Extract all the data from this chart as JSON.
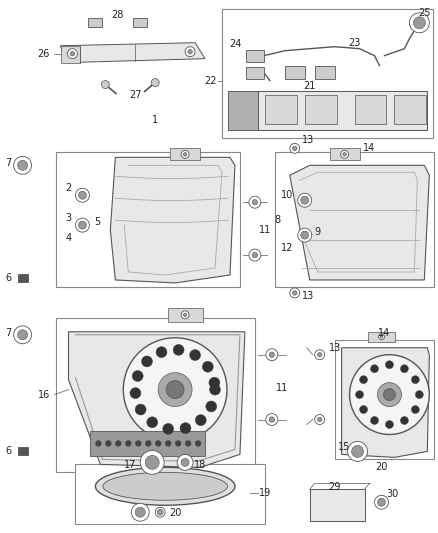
{
  "bg_color": "#ffffff",
  "fig_width": 4.38,
  "fig_height": 5.33,
  "dpi": 100,
  "edge_color": "#555555",
  "light_gray": "#cccccc",
  "mid_gray": "#999999",
  "dark_gray": "#444444",
  "box_edge": "#888888",
  "lamp_fill": "#e8e8e8",
  "lamp_fill2": "#d8d8d8"
}
